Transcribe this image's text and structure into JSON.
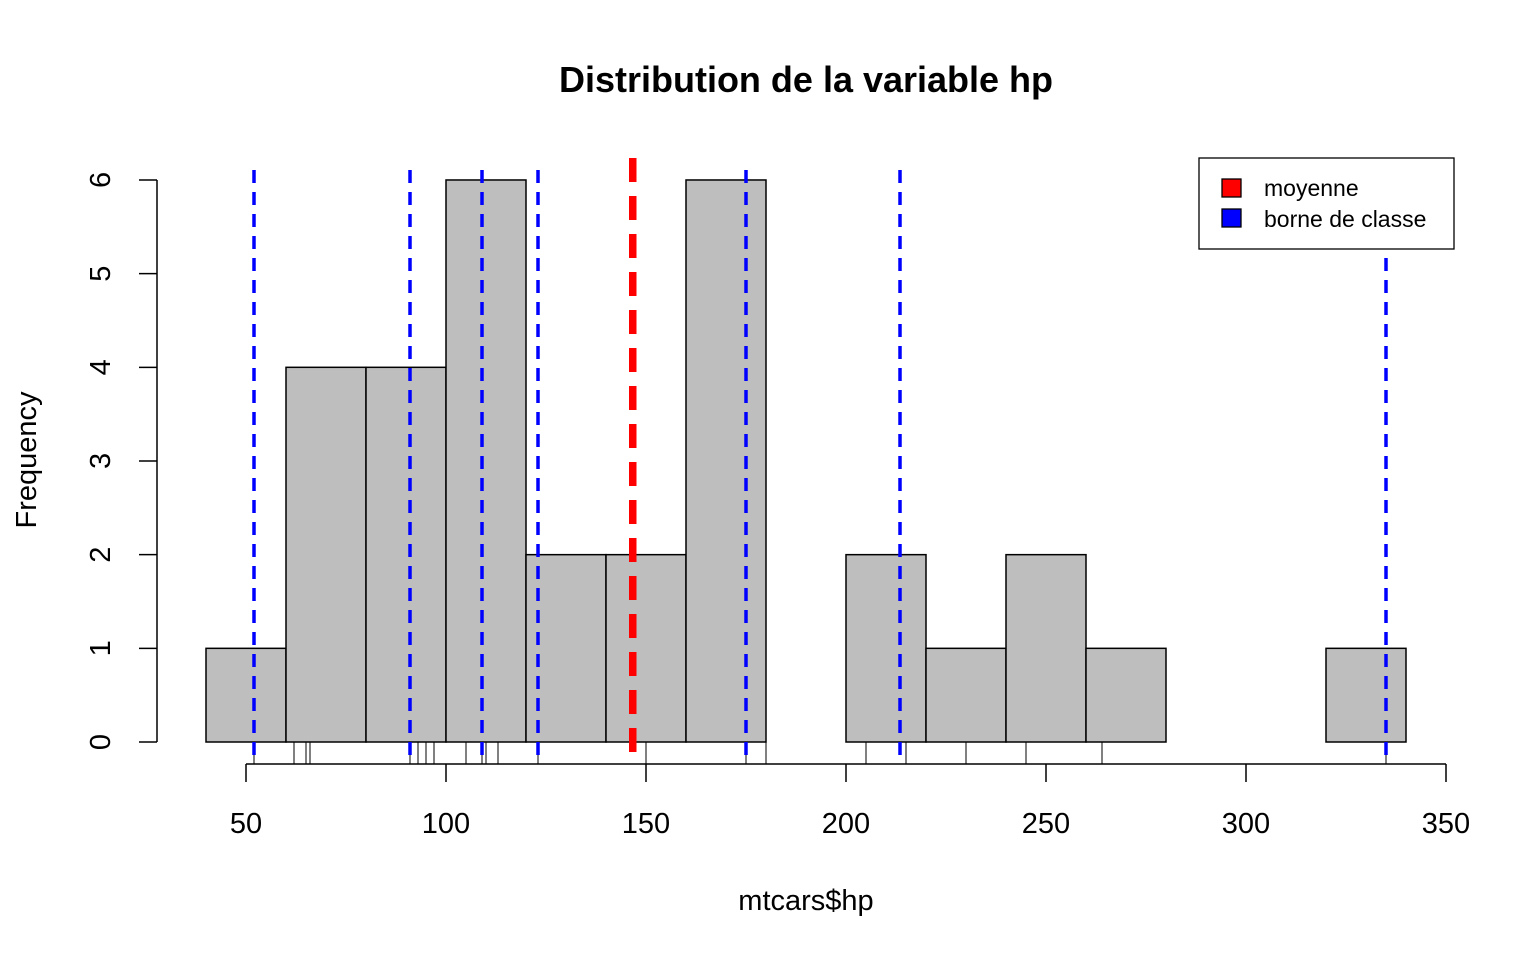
{
  "chart_data": {
    "type": "bar",
    "title": "Distribution de la variable hp",
    "xlabel": "mtcars$hp",
    "ylabel": "Frequency",
    "bins": [
      {
        "from": 40,
        "to": 60,
        "count": 1
      },
      {
        "from": 60,
        "to": 80,
        "count": 4
      },
      {
        "from": 80,
        "to": 100,
        "count": 4
      },
      {
        "from": 100,
        "to": 120,
        "count": 6
      },
      {
        "from": 120,
        "to": 140,
        "count": 2
      },
      {
        "from": 140,
        "to": 160,
        "count": 2
      },
      {
        "from": 160,
        "to": 180,
        "count": 6
      },
      {
        "from": 180,
        "to": 200,
        "count": 0
      },
      {
        "from": 200,
        "to": 220,
        "count": 2
      },
      {
        "from": 220,
        "to": 240,
        "count": 1
      },
      {
        "from": 240,
        "to": 260,
        "count": 2
      },
      {
        "from": 260,
        "to": 280,
        "count": 1
      },
      {
        "from": 280,
        "to": 300,
        "count": 0
      },
      {
        "from": 300,
        "to": 320,
        "count": 0
      },
      {
        "from": 320,
        "to": 340,
        "count": 1
      }
    ],
    "xlim": [
      40,
      350
    ],
    "ylim": [
      0,
      6
    ],
    "x_ticks": [
      50,
      100,
      150,
      200,
      250,
      300,
      350
    ],
    "y_ticks": [
      0,
      1,
      2,
      3,
      4,
      5,
      6
    ],
    "rug": [
      52,
      62,
      65,
      66,
      91,
      93,
      95,
      97,
      105,
      109,
      110,
      113,
      123,
      150,
      175,
      180,
      205,
      215,
      230,
      245,
      264,
      335
    ],
    "mean": 146.6875,
    "class_boundaries": [
      52,
      91,
      109,
      123,
      175,
      213.5,
      335
    ],
    "legend": {
      "position": "top-right",
      "entries": [
        {
          "label": "moyenne",
          "color": "#ff0000"
        },
        {
          "label": "borne de classe",
          "color": "#0000ff"
        }
      ]
    },
    "colors": {
      "bar_fill": "#bebebe",
      "bar_stroke": "#000000",
      "mean_line": "#ff0000",
      "boundary_line": "#0000ff"
    },
    "grid": false
  }
}
